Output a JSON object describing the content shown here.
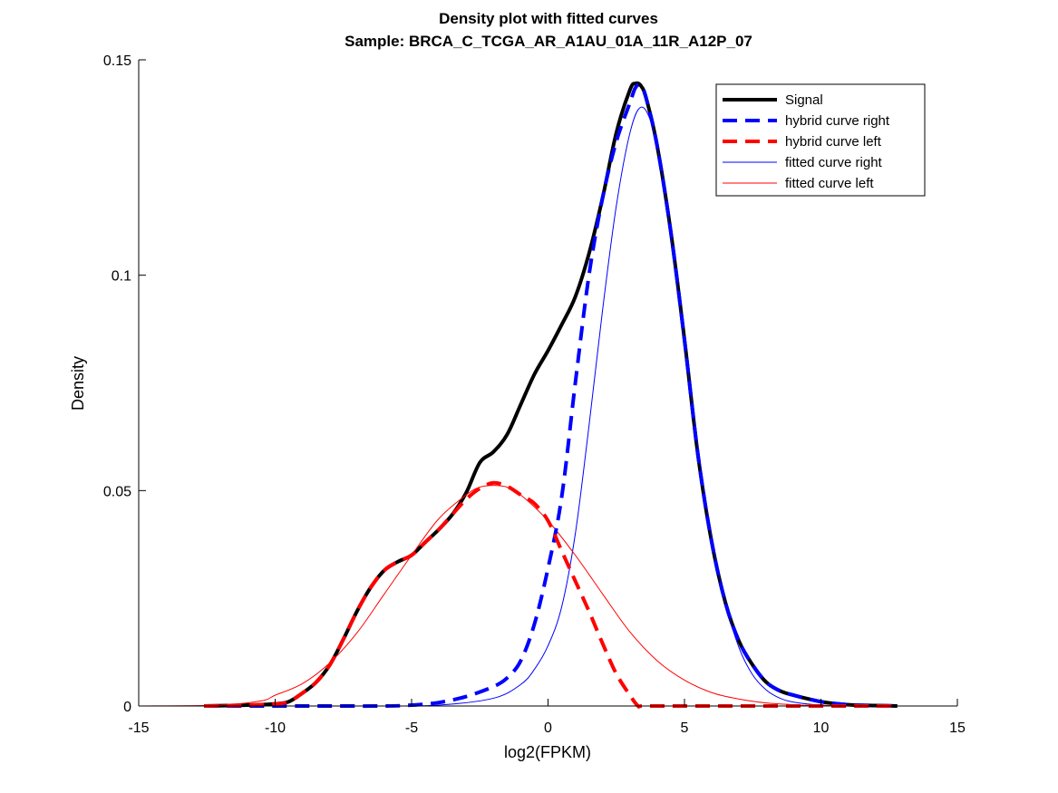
{
  "chart_data": {
    "type": "line",
    "title": "Density plot with fitted curves",
    "subtitle": "Sample: BRCA_C_TCGA_AR_A1AU_01A_11R_A12P_07",
    "xlabel": "log2(FPKM)",
    "ylabel": "Density",
    "xlim": [
      -15,
      15
    ],
    "ylim": [
      0,
      0.15
    ],
    "xticks": [
      -15,
      -10,
      -5,
      0,
      5,
      10,
      15
    ],
    "xtick_labels": [
      "-15",
      "-10",
      "-5",
      "0",
      "5",
      "10",
      "15"
    ],
    "yticks": [
      0,
      0.05,
      0.1,
      0.15
    ],
    "ytick_labels": [
      "0",
      "0.05",
      "0.1",
      "0.15"
    ],
    "grid": false,
    "legend_position": "top-right",
    "series": [
      {
        "name": "Signal",
        "color": "#000000",
        "style": "solid",
        "width": 4,
        "x": [
          -12.6,
          -11,
          -10,
          -9.5,
          -9,
          -8.5,
          -8,
          -7.5,
          -7,
          -6.5,
          -6,
          -5.5,
          -5,
          -4.5,
          -4,
          -3.5,
          -3,
          -2.5,
          -2,
          -1.5,
          -1,
          -0.5,
          0,
          0.5,
          1,
          1.5,
          2,
          2.5,
          3,
          3.2,
          3.4,
          3.6,
          4,
          4.5,
          5,
          5.5,
          6,
          6.5,
          7,
          7.5,
          8,
          8.5,
          9,
          10,
          11,
          12,
          12.8
        ],
        "y": [
          0,
          0.0002,
          0.0005,
          0.001,
          0.003,
          0.0055,
          0.0095,
          0.0155,
          0.022,
          0.0275,
          0.0315,
          0.0335,
          0.035,
          0.038,
          0.041,
          0.0445,
          0.0495,
          0.0565,
          0.059,
          0.063,
          0.07,
          0.077,
          0.0825,
          0.0885,
          0.095,
          0.105,
          0.118,
          0.133,
          0.143,
          0.1445,
          0.144,
          0.141,
          0.13,
          0.11,
          0.085,
          0.058,
          0.038,
          0.024,
          0.015,
          0.0095,
          0.0055,
          0.0035,
          0.0025,
          0.001,
          0.0003,
          0.0001,
          0
        ]
      },
      {
        "name": "hybrid curve right",
        "color": "#0000ff",
        "style": "dashed",
        "width": 4,
        "x": [
          -12.6,
          -10,
          -8,
          -6,
          -5,
          -4,
          -3,
          -2,
          -1.5,
          -1,
          -0.5,
          0,
          0.5,
          1,
          1.5,
          2,
          2.5,
          3,
          3.2,
          3.4,
          3.6,
          4,
          4.5,
          5,
          5.5,
          6,
          6.5,
          7,
          7.5,
          8,
          8.5,
          9,
          10,
          11,
          12,
          12.8
        ],
        "y": [
          0,
          0,
          0,
          0,
          0.0002,
          0.0008,
          0.0022,
          0.0045,
          0.0065,
          0.0105,
          0.019,
          0.032,
          0.0485,
          0.075,
          0.1,
          0.118,
          0.131,
          0.14,
          0.1435,
          0.144,
          0.141,
          0.13,
          0.11,
          0.085,
          0.058,
          0.038,
          0.024,
          0.015,
          0.0095,
          0.0055,
          0.0035,
          0.0025,
          0.001,
          0.0003,
          0.0001,
          0
        ]
      },
      {
        "name": "hybrid curve left",
        "color": "#ff0000",
        "style": "dashed",
        "width": 4,
        "x": [
          -12.6,
          -11,
          -10,
          -9.5,
          -9,
          -8.5,
          -8,
          -7.5,
          -7,
          -6.5,
          -6,
          -5.5,
          -5,
          -4.5,
          -4,
          -3.5,
          -3,
          -2.5,
          -2,
          -1.5,
          -1,
          -0.5,
          0,
          0.5,
          1,
          1.5,
          2,
          2.5,
          3,
          3.3,
          3.5,
          5,
          8,
          12.8
        ],
        "y": [
          0,
          0.0002,
          0.0005,
          0.001,
          0.003,
          0.0055,
          0.0095,
          0.0155,
          0.022,
          0.0275,
          0.0315,
          0.0335,
          0.035,
          0.038,
          0.041,
          0.0445,
          0.048,
          0.0505,
          0.0518,
          0.051,
          0.049,
          0.047,
          0.043,
          0.036,
          0.029,
          0.022,
          0.0145,
          0.0075,
          0.0025,
          0,
          0,
          0,
          0,
          0
        ]
      },
      {
        "name": "fitted curve right",
        "color": "#0000ff",
        "style": "solid",
        "width": 1,
        "x": [
          -12.6,
          -10,
          -8,
          -6,
          -4,
          -2,
          -1,
          -0.5,
          0,
          0.5,
          1,
          1.5,
          2,
          2.5,
          3,
          3.4,
          3.8,
          4.2,
          4.6,
          5,
          5.5,
          6,
          6.5,
          7,
          7.5,
          8,
          8.5,
          9,
          10,
          11,
          12.8
        ],
        "y": [
          0,
          0,
          0,
          0,
          0.0002,
          0.0018,
          0.005,
          0.0085,
          0.014,
          0.023,
          0.04,
          0.065,
          0.092,
          0.116,
          0.133,
          0.139,
          0.135,
          0.123,
          0.104,
          0.084,
          0.06,
          0.039,
          0.024,
          0.0135,
          0.0072,
          0.0037,
          0.0018,
          0.0009,
          0.0002,
          0,
          0
        ]
      },
      {
        "name": "fitted curve left",
        "color": "#ff0000",
        "style": "solid",
        "width": 1,
        "x": [
          -15,
          -12,
          -10.5,
          -10,
          -9,
          -8,
          -7,
          -6,
          -5,
          -4,
          -3,
          -2.5,
          -2,
          -1.5,
          -1,
          0,
          1,
          2,
          3,
          4,
          5,
          6,
          7,
          8,
          9,
          10,
          12.8
        ],
        "y": [
          0,
          0.0002,
          0.0012,
          0.0025,
          0.0052,
          0.01,
          0.017,
          0.026,
          0.035,
          0.0435,
          0.049,
          0.0508,
          0.0512,
          0.0508,
          0.049,
          0.043,
          0.035,
          0.026,
          0.0172,
          0.0105,
          0.006,
          0.0031,
          0.0016,
          0.0007,
          0.0003,
          0.0001,
          0
        ]
      }
    ]
  }
}
